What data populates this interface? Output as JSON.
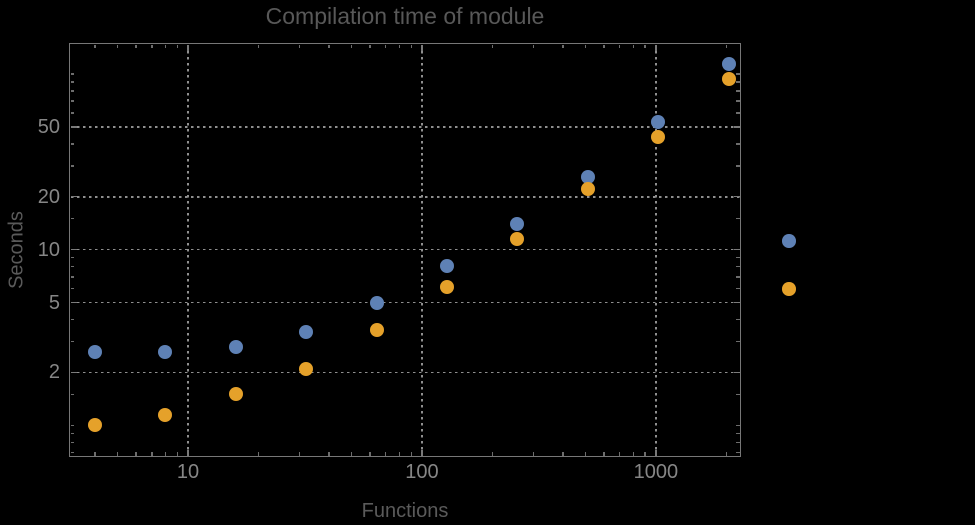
{
  "chart_data": {
    "type": "scatter",
    "title": "Compilation time of module",
    "xlabel": "Functions",
    "ylabel": "Seconds",
    "x_scale": "log",
    "y_scale": "log",
    "x_range": [
      3.1,
      2310
    ],
    "y_range": [
      0.66,
      150
    ],
    "x_major_ticks": [
      {
        "value": 10,
        "label": "10"
      },
      {
        "value": 100,
        "label": "100"
      },
      {
        "value": 1000,
        "label": "1000"
      }
    ],
    "x_minor_ticks": [
      4,
      5,
      6,
      7,
      8,
      9,
      20,
      30,
      40,
      50,
      60,
      70,
      80,
      90,
      200,
      300,
      400,
      500,
      600,
      700,
      800,
      900,
      2000
    ],
    "y_major_ticks": [
      {
        "value": 2,
        "label": "2"
      },
      {
        "value": 5,
        "label": "5"
      },
      {
        "value": 10,
        "label": "10"
      },
      {
        "value": 20,
        "label": "20"
      },
      {
        "value": 50,
        "label": "50"
      }
    ],
    "y_minor_ticks": [
      0.7,
      0.8,
      0.9,
      1,
      1.5,
      3,
      4,
      6,
      7,
      8,
      9,
      15,
      30,
      40,
      60,
      70,
      80,
      90,
      100
    ],
    "gridlines_x": [
      10,
      100,
      1000
    ],
    "gridlines_y": [
      2,
      5,
      10,
      20,
      50
    ],
    "grid_style": "dotted",
    "legend_position": "right-outside",
    "series": [
      {
        "name": "blue",
        "color": "#5E81B5",
        "x": [
          4,
          8,
          16,
          32,
          64,
          128,
          256,
          512,
          1024,
          2048
        ],
        "y": [
          2.6,
          2.6,
          2.8,
          3.4,
          5.0,
          8.1,
          14,
          26,
          53,
          114
        ]
      },
      {
        "name": "orange",
        "color": "#E5A12A",
        "x": [
          4,
          8,
          16,
          32,
          64,
          128,
          256,
          512,
          1024,
          2048
        ],
        "y": [
          1.0,
          1.15,
          1.5,
          2.1,
          3.5,
          6.1,
          11.5,
          22,
          44,
          94
        ]
      }
    ],
    "legend_markers": [
      {
        "name": "blue",
        "color": "#5E81B5"
      },
      {
        "name": "orange",
        "color": "#E5A12A"
      }
    ],
    "colors": {
      "background": "#000000",
      "frame": "#777777",
      "grid": "#8f8f8f",
      "tick_labels": "#868686",
      "title_text": "#585858"
    }
  }
}
